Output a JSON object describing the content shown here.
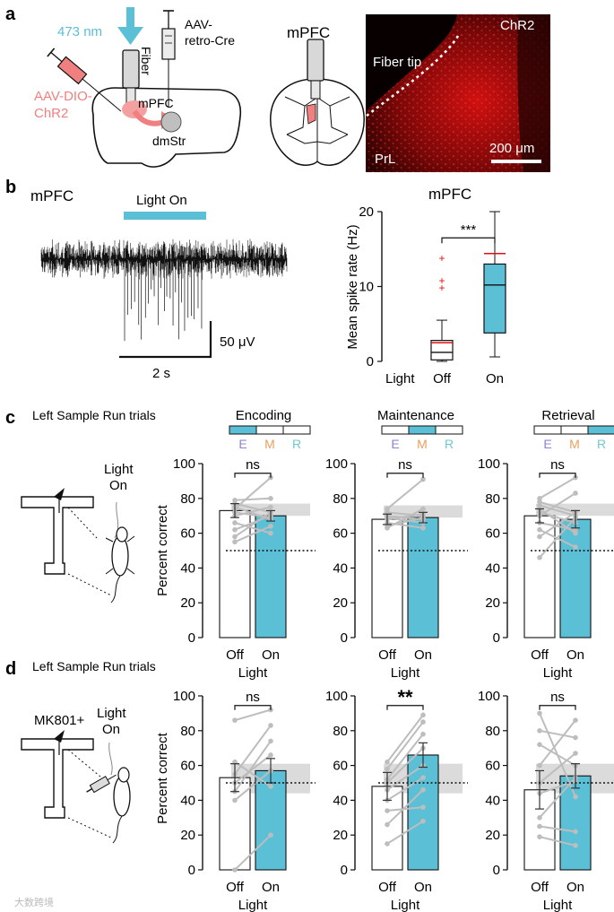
{
  "panel_a": {
    "letter": "a",
    "wavelength": "473 nm",
    "fiber": "Fiber",
    "virus_cre": [
      "AAV-",
      "retro-Cre"
    ],
    "virus_chr2": [
      "AAV-DIO-",
      "ChR2"
    ],
    "mpfc": "mPFC",
    "dmstr": "dmStr",
    "section_title": "mPFC",
    "micro_title": "ChR2",
    "fiber_tip": "Fiber tip",
    "region": "PrL",
    "scale": "200 μm",
    "colors": {
      "light": "#5bbfd6",
      "virus": "#f08080",
      "chr2": "#ee1111"
    }
  },
  "panel_b": {
    "letter": "b",
    "trace_title": "mPFC",
    "light_on": "Light On",
    "scale_y": "50 μV",
    "scale_x": "2 s",
    "box_title": "mPFC",
    "ylabel": "Mean spike rate (Hz)",
    "light_label": "Light",
    "sig": "***"
  },
  "panel_c": {
    "letter": "c",
    "trials": "Left Sample Run trials",
    "light_on": [
      "Light",
      "On"
    ],
    "ylabel": "Percent correct",
    "xlabel": "Light"
  },
  "panel_d": {
    "letter": "d",
    "trials": "Left Sample Run trials",
    "drug": "MK801+",
    "light_on": [
      "Light",
      "On"
    ],
    "ylabel": "Percent correct",
    "xlabel": "Light"
  },
  "phase_letters": [
    "E",
    "M",
    "R"
  ],
  "phase_letter_colors": [
    "#8c84d0",
    "#e8a060",
    "#6fc9cf"
  ],
  "watermark": "大数跨境",
  "chart_data": [
    {
      "type": "box",
      "panel": "b",
      "title": "mPFC",
      "categories": [
        "Off",
        "On"
      ],
      "ylabel": "Mean spike rate (Hz)",
      "ylim": [
        0,
        20
      ],
      "yticks": [
        0,
        10,
        20
      ],
      "boxes": [
        {
          "name": "Off",
          "min": 0,
          "q1": 0.2,
          "median": 1.2,
          "q3": 2.8,
          "max": 5.5,
          "mean": 2.5,
          "outliers": [
            13.8,
            10.8,
            9.8
          ]
        },
        {
          "name": "On",
          "min": 0.6,
          "q1": 3.8,
          "median": 10.2,
          "q3": 13,
          "max": 20,
          "mean": 14.4,
          "outliers": []
        }
      ],
      "significance": "***"
    },
    {
      "type": "bar",
      "panel": "c",
      "title": "Encoding",
      "phase_highlight": 0,
      "categories": [
        "Off",
        "On"
      ],
      "values": [
        73,
        70
      ],
      "errors": [
        4,
        3
      ],
      "chance": 50,
      "band": [
        70,
        77
      ],
      "significance": "ns",
      "pairs": [
        [
          79,
          80
        ],
        [
          77,
          72
        ],
        [
          75,
          68
        ],
        [
          74,
          92
        ],
        [
          72,
          69
        ],
        [
          70,
          75
        ],
        [
          66,
          60
        ],
        [
          62,
          70
        ],
        [
          58,
          72
        ],
        [
          55,
          64
        ]
      ],
      "ylabel": "Percent correct",
      "xlabel": "Light",
      "ylim": [
        0,
        100
      ],
      "yticks": [
        0,
        20,
        40,
        60,
        80,
        100
      ]
    },
    {
      "type": "bar",
      "panel": "c",
      "title": "Maintenance",
      "phase_highlight": 1,
      "categories": [
        "Off",
        "On"
      ],
      "values": [
        68,
        69
      ],
      "errors": [
        3,
        3
      ],
      "chance": 50,
      "band": [
        69,
        76
      ],
      "significance": "ns",
      "pairs": [
        [
          74,
          91
        ],
        [
          72,
          70
        ],
        [
          70,
          68
        ],
        [
          69,
          66
        ],
        [
          68,
          71
        ],
        [
          66,
          63
        ],
        [
          64,
          69
        ],
        [
          63,
          74
        ]
      ],
      "ylabel": "Percent correct",
      "xlabel": "Light",
      "ylim": [
        0,
        100
      ],
      "yticks": [
        0,
        20,
        40,
        60,
        80,
        100
      ]
    },
    {
      "type": "bar",
      "panel": "c",
      "title": "Retrieval",
      "phase_highlight": 2,
      "categories": [
        "Off",
        "On"
      ],
      "values": [
        70,
        68
      ],
      "errors": [
        4,
        5
      ],
      "chance": 50,
      "band": [
        70,
        77
      ],
      "significance": "ns",
      "pairs": [
        [
          80,
          92
        ],
        [
          78,
          72
        ],
        [
          76,
          70
        ],
        [
          74,
          60
        ],
        [
          72,
          66
        ],
        [
          70,
          83
        ],
        [
          66,
          62
        ],
        [
          62,
          52
        ],
        [
          58,
          72
        ],
        [
          46,
          69
        ]
      ],
      "ylabel": "Percent correct",
      "xlabel": "Light",
      "ylim": [
        0,
        100
      ],
      "yticks": [
        0,
        20,
        40,
        60,
        80,
        100
      ]
    },
    {
      "type": "bar",
      "panel": "d",
      "title": "",
      "phase_highlight": 0,
      "categories": [
        "Off",
        "On"
      ],
      "values": [
        53,
        57
      ],
      "errors": [
        8,
        7
      ],
      "chance": 50,
      "band": [
        44,
        61
      ],
      "significance": "ns",
      "pairs": [
        [
          86,
          92
        ],
        [
          62,
          48
        ],
        [
          55,
          83
        ],
        [
          50,
          66
        ],
        [
          45,
          74
        ],
        [
          40,
          57
        ],
        [
          0,
          20
        ]
      ],
      "ylabel": "Percent correct",
      "xlabel": "Light",
      "ylim": [
        0,
        100
      ],
      "yticks": [
        0,
        20,
        40,
        60,
        80,
        100
      ]
    },
    {
      "type": "bar",
      "panel": "d",
      "title": "",
      "phase_highlight": 1,
      "categories": [
        "Off",
        "On"
      ],
      "values": [
        48,
        66
      ],
      "errors": [
        8,
        7
      ],
      "chance": 50,
      "band": [
        44,
        61
      ],
      "significance": "**",
      "pairs": [
        [
          62,
          89
        ],
        [
          58,
          85
        ],
        [
          52,
          78
        ],
        [
          50,
          70
        ],
        [
          46,
          60
        ],
        [
          40,
          53
        ],
        [
          34,
          36
        ],
        [
          26,
          46
        ],
        [
          15,
          28
        ]
      ],
      "ylabel": "Percent correct",
      "xlabel": "Light",
      "ylim": [
        0,
        100
      ],
      "yticks": [
        0,
        20,
        40,
        60,
        80,
        100
      ]
    },
    {
      "type": "bar",
      "panel": "d",
      "title": "",
      "phase_highlight": 2,
      "categories": [
        "Off",
        "On"
      ],
      "values": [
        46,
        54
      ],
      "errors": [
        11,
        7
      ],
      "chance": 50,
      "band": [
        44,
        61
      ],
      "significance": "ns",
      "pairs": [
        [
          90,
          42
        ],
        [
          80,
          76
        ],
        [
          72,
          60
        ],
        [
          60,
          86
        ],
        [
          50,
          67
        ],
        [
          44,
          51
        ],
        [
          30,
          53
        ],
        [
          25,
          22
        ],
        [
          19,
          14
        ]
      ],
      "ylabel": "Percent correct",
      "xlabel": "Light",
      "ylim": [
        0,
        100
      ],
      "yticks": [
        0,
        20,
        40,
        60,
        80,
        100
      ]
    }
  ]
}
